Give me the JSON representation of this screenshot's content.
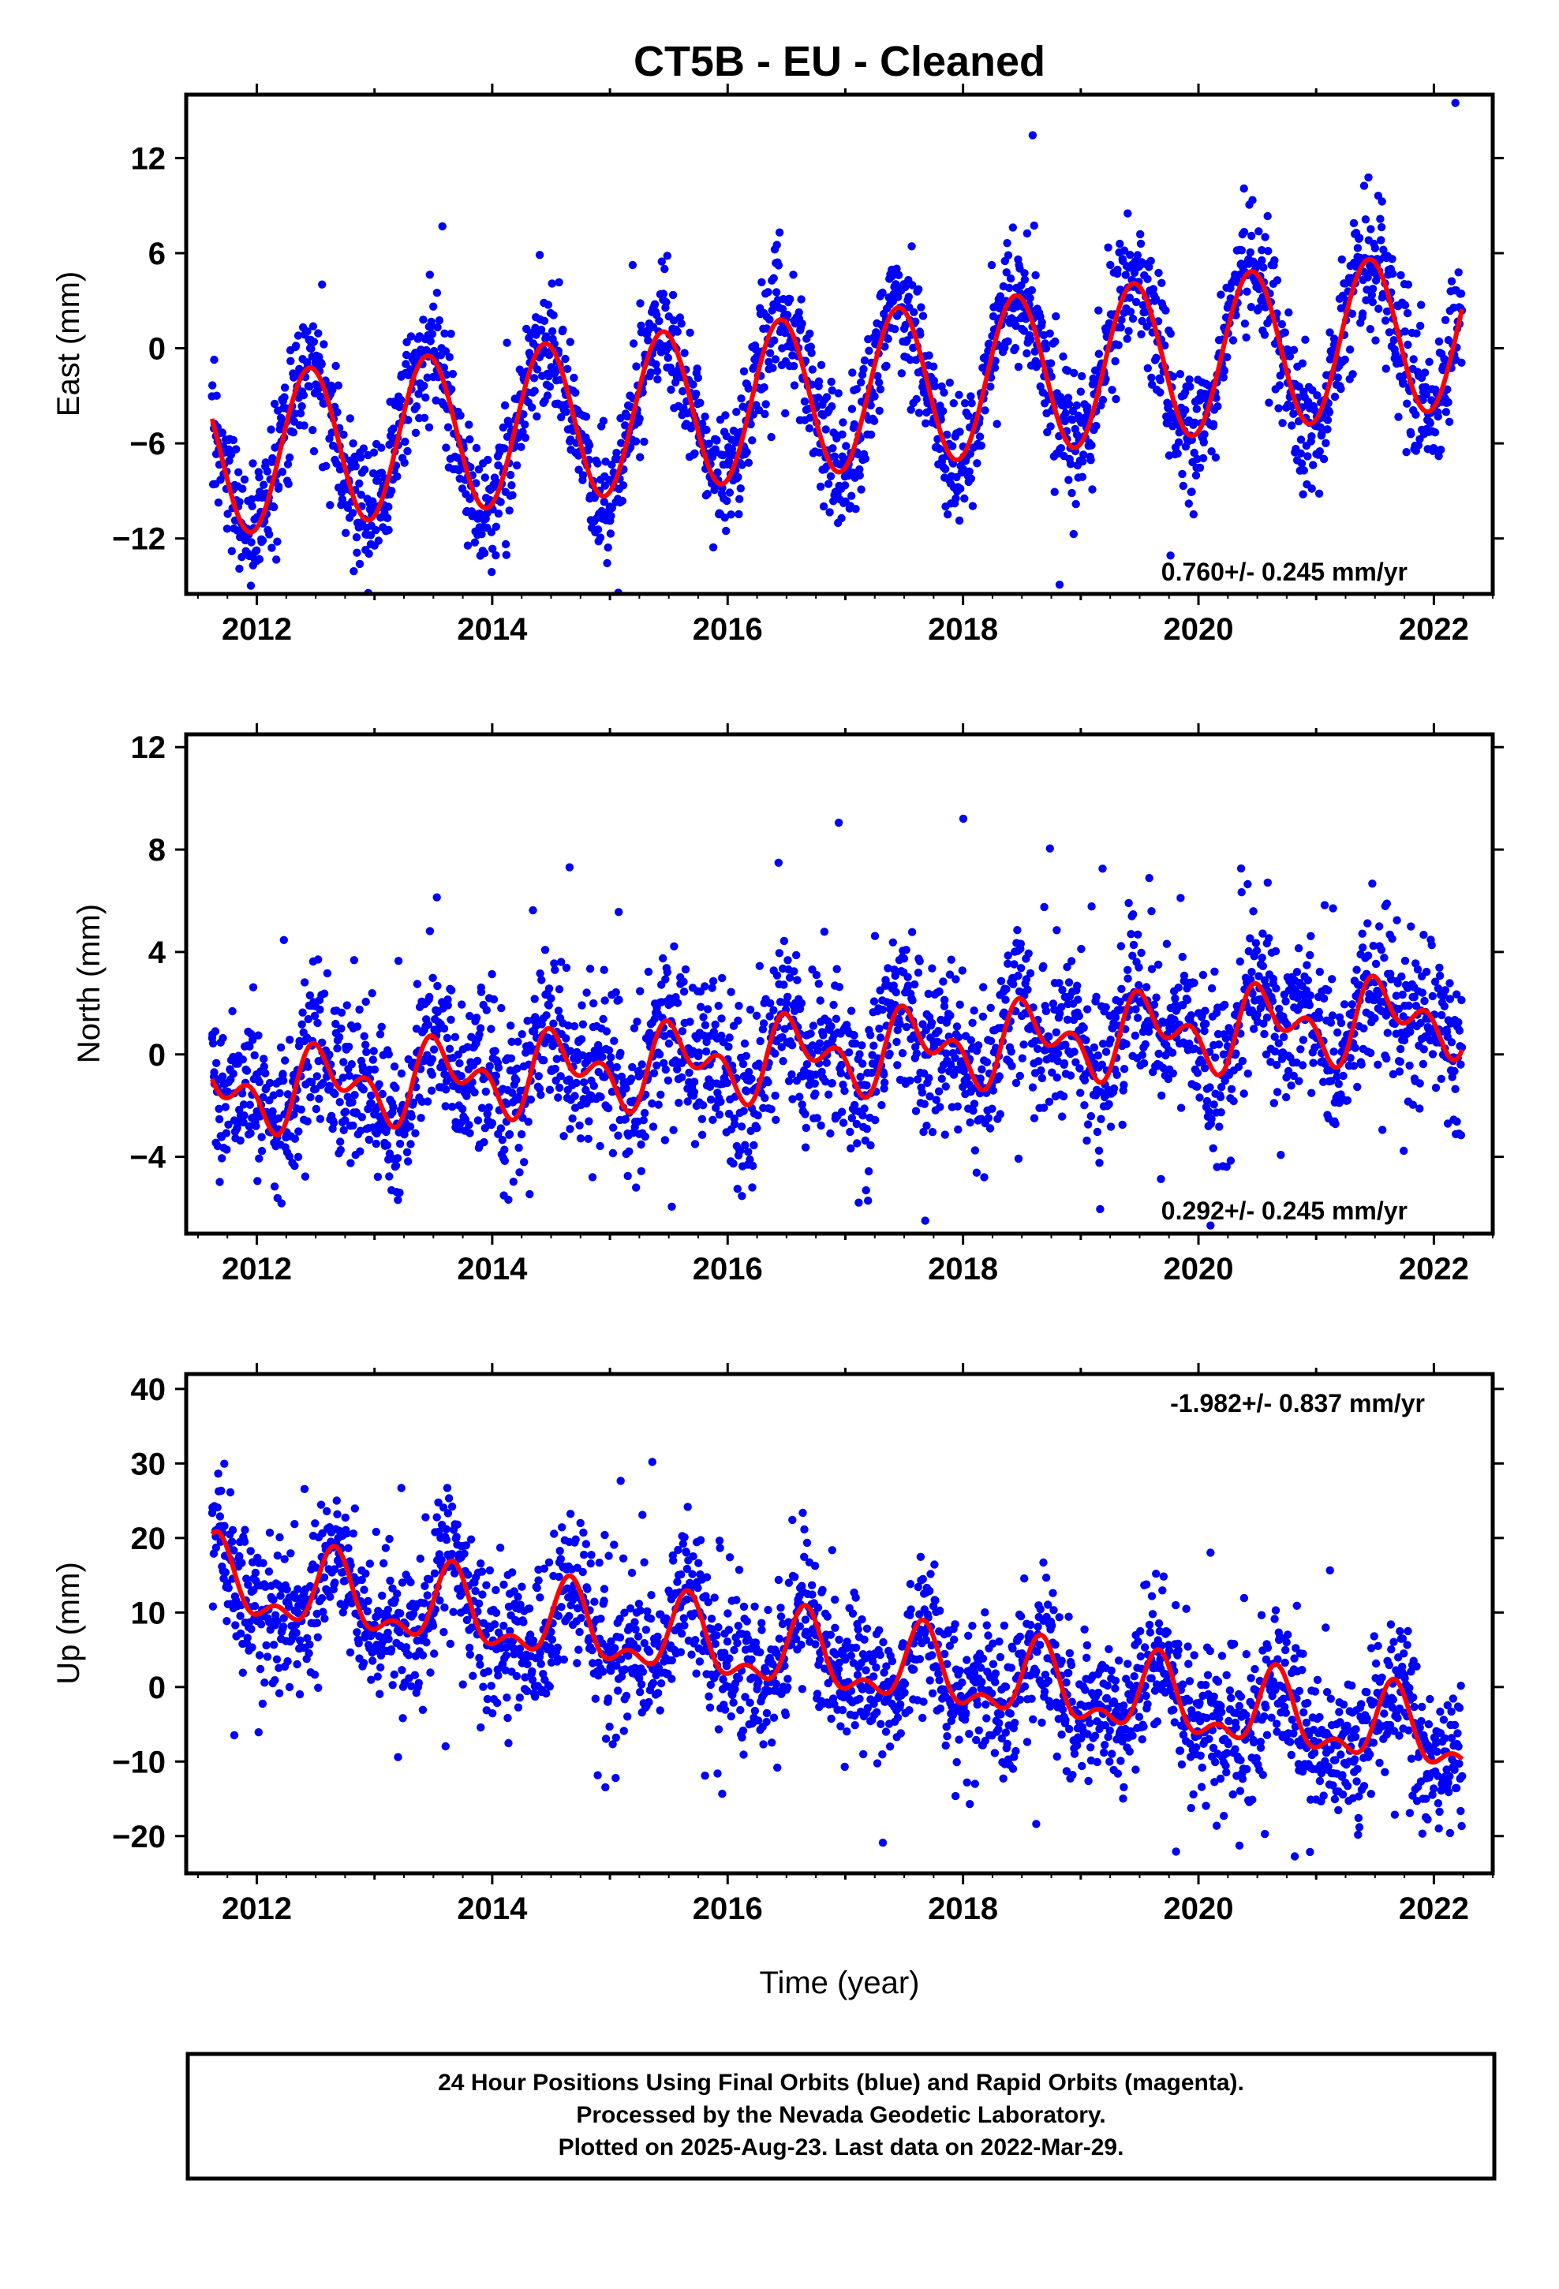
{
  "title": "CT5B  - EU - Cleaned",
  "footer": {
    "lines": [
      "24 Hour Positions Using Final Orbits (blue) and Rapid Orbits (magenta).",
      "Processed by the Nevada Geodetic Laboratory.",
      "Plotted on 2025-Aug-23. Last data on 2022-Mar-29."
    ]
  },
  "colors": {
    "points": "#0000ff",
    "model": "#ff0000",
    "frame": "#000000"
  },
  "chart_data": [
    {
      "type": "scatter",
      "component": "east",
      "ylabel": "East (mm)",
      "xlabel": "",
      "rate_label": "0.760+/- 0.245 mm/yr",
      "xlim": [
        2011.4,
        2022.5
      ],
      "ylim": [
        -15.5,
        16
      ],
      "xticks": [
        2012,
        2014,
        2016,
        2018,
        2020,
        2022
      ],
      "yticks": [
        -12,
        -6,
        0,
        6,
        12
      ],
      "ytick_labels": [
        "−12",
        "−6",
        "0",
        "6",
        "12"
      ],
      "data_range": [
        2011.62,
        2022.24
      ],
      "model": {
        "offset": -3.0,
        "rate": 0.76,
        "t0": 2016.7,
        "annual_amp": 5.0,
        "annual_peak": 0.45,
        "semi_amp": 0.0,
        "semi_peak": 0.0
      },
      "noise_sd": 2.0,
      "outlier_rate": 0.02,
      "n_points": 2400,
      "series": [
        {
          "name": "Final Orbits (blue)",
          "role": "points"
        },
        {
          "name": "Model",
          "role": "fit"
        }
      ]
    },
    {
      "type": "scatter",
      "component": "north",
      "ylabel": "North (mm)",
      "xlabel": "",
      "rate_label": "0.292+/- 0.245 mm/yr",
      "xlim": [
        2011.4,
        2022.5
      ],
      "ylim": [
        -7,
        12.5
      ],
      "xticks": [
        2012,
        2014,
        2016,
        2018,
        2020,
        2022
      ],
      "yticks": [
        -4,
        0,
        4,
        8,
        12
      ],
      "ytick_labels": [
        "−4",
        "0",
        "4",
        "8",
        "12"
      ],
      "data_range": [
        2011.62,
        2022.24
      ],
      "model": {
        "offset": 0.0,
        "rate": 0.292,
        "t0": 2016.9,
        "annual_amp": 1.1,
        "annual_peak": 0.58,
        "semi_amp": 0.9,
        "semi_peak": 0.45
      },
      "noise_sd": 1.6,
      "outlier_rate": 0.04,
      "n_points": 2400,
      "series": [
        {
          "name": "Final Orbits (blue)",
          "role": "points"
        },
        {
          "name": "Model",
          "role": "fit"
        }
      ]
    },
    {
      "type": "scatter",
      "component": "up",
      "ylabel": "Up (mm)",
      "xlabel": "Time (year)",
      "rate_label": "-1.982+/- 0.837 mm/yr",
      "xlim": [
        2011.4,
        2022.5
      ],
      "ylim": [
        -25,
        42
      ],
      "xticks": [
        2012,
        2014,
        2016,
        2018,
        2020,
        2022
      ],
      "yticks": [
        -20,
        -10,
        0,
        10,
        20,
        30,
        40
      ],
      "ytick_labels": [
        "−20",
        "−10",
        "0",
        "10",
        "20",
        "30",
        "40"
      ],
      "data_range": [
        2011.62,
        2022.24
      ],
      "model": {
        "offset": 3.5,
        "rate": -1.982,
        "t0": 2016.9,
        "annual_amp": 4.5,
        "annual_peak": 0.66,
        "semi_amp": 2.5,
        "semi_peak": 0.16
      },
      "noise_sd": 5.0,
      "outlier_rate": 0.03,
      "n_points": 2400,
      "series": [
        {
          "name": "Final Orbits (blue)",
          "role": "points"
        },
        {
          "name": "Model",
          "role": "fit"
        }
      ]
    }
  ]
}
